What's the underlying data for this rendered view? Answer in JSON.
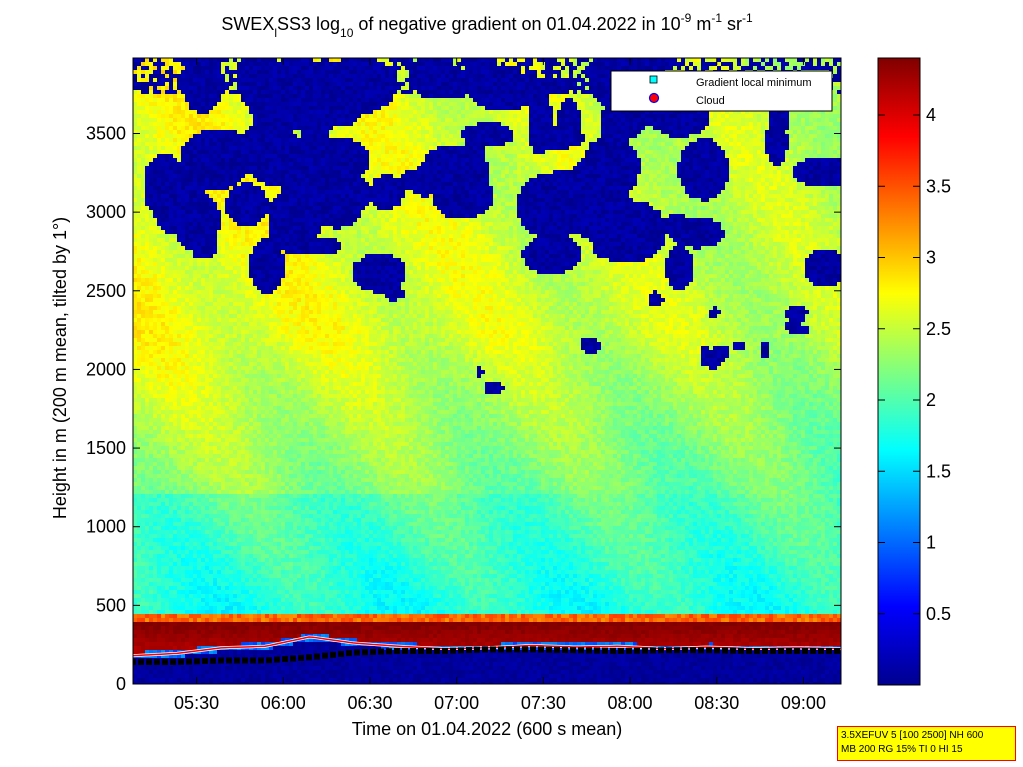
{
  "chart_data": {
    "type": "heatmap",
    "title": {
      "part1": "SWEX",
      "sub1": "l",
      "part2": "SS3 log",
      "sub2": "10",
      "part3": " of negative gradient on 01.04.2022 in 10",
      "sup1": "-9",
      "part4": " m",
      "sup2": "-1",
      "part5": " sr",
      "sup3": "-1"
    },
    "xlabel": "Time on 01.04.2022 (600 s mean)",
    "ylabel": "Height in m (200 m mean, tilted by 1°)",
    "x_ticks": [
      "05:30",
      "06:00",
      "06:30",
      "07:00",
      "07:30",
      "08:00",
      "08:30",
      "09:00"
    ],
    "x_tick_hours": [
      5.5,
      6.0,
      6.5,
      7.0,
      7.5,
      8.0,
      8.5,
      9.0
    ],
    "xlim": [
      "05:08",
      "09:13"
    ],
    "y_ticks": [
      0,
      500,
      1000,
      1500,
      2000,
      2500,
      3000,
      3500
    ],
    "ylim": [
      0,
      3980
    ],
    "colorbar": {
      "ticks": [
        "0.5",
        "1",
        "1.5",
        "2",
        "2.5",
        "3",
        "3.5",
        "4"
      ],
      "tick_values": [
        0.5,
        1,
        1.5,
        2,
        2.5,
        3,
        3.5,
        4
      ],
      "range": [
        0,
        4.4
      ],
      "colormap": "jet"
    },
    "legend": {
      "position": "top-right",
      "entries": [
        {
          "label": "Gradient local minimum",
          "marker": "square",
          "color": "#00ffff"
        },
        {
          "label": "Cloud",
          "marker": "circle",
          "color": "#ff0000"
        }
      ]
    },
    "grid": false,
    "layers": {
      "surface_layer_top_m": 440,
      "surface_layer_value": 4.3,
      "cloud_height_m": [
        180,
        195,
        230,
        240,
        300,
        260,
        240,
        225,
        230,
        245,
        235,
        240,
        225,
        235,
        225,
        230,
        225
      ],
      "gradient_min_height_m": [
        140,
        140,
        150,
        150,
        170,
        200,
        210,
        210,
        220,
        220,
        215,
        210,
        215,
        215,
        210,
        210,
        210
      ],
      "free_troposphere_value": 2.4,
      "clear_air_top_value": 0.1
    }
  },
  "info_box": {
    "line1": "3.5XEFUV 5 [100 2500] NH 600",
    "line2": "MB 200 RG 15% TI 0 HI 15"
  }
}
